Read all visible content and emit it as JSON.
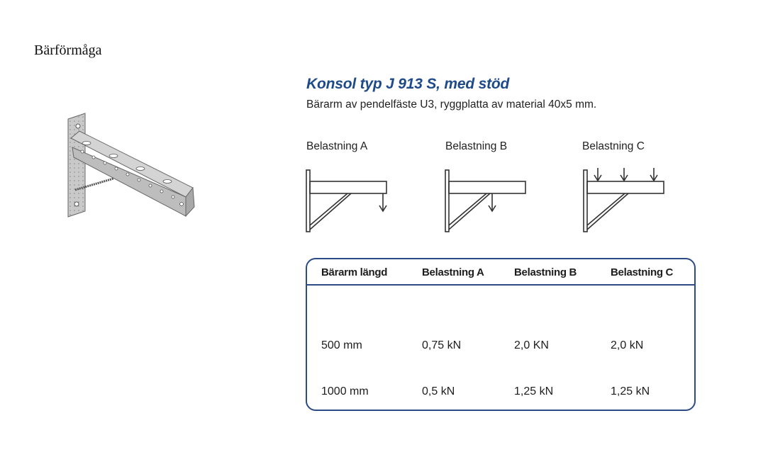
{
  "heading": "Bärförmåga",
  "product": {
    "title": "Konsol typ J 913 S, med stöd",
    "subtitle": "Bärarm av pendelfäste U3, ryggplatta av material 40x5 mm."
  },
  "load_cases": [
    {
      "label": "Belastning A",
      "load_position": "end-point"
    },
    {
      "label": "Belastning B",
      "load_position": "mid-point"
    },
    {
      "label": "Belastning C",
      "load_position": "distributed"
    }
  ],
  "table": {
    "headers": [
      "Bärarm längd",
      "Belastning A",
      "Belastning B",
      "Belastning C"
    ],
    "rows": [
      [
        "500 mm",
        "0,75 kN",
        "2,0 KN",
        "2,0 kN"
      ],
      [
        "1000 mm",
        "0,5 kN",
        "1,25 kN",
        "1,25 kN"
      ]
    ]
  },
  "colors": {
    "accent": "#1f4a8a",
    "table_border": "#2b4c86"
  }
}
